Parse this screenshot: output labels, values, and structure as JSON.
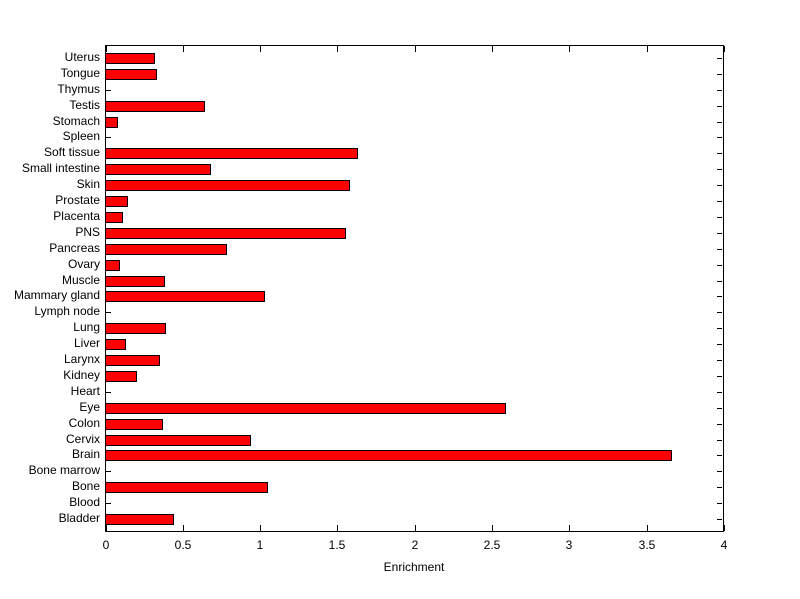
{
  "figure": {
    "background_color": "#ffffff",
    "text_color": "#000000"
  },
  "chart_data": {
    "type": "bar",
    "orientation": "horizontal",
    "title": "",
    "xlabel": "Enrichment",
    "ylabel": "",
    "xlim": [
      0,
      4
    ],
    "grid": false,
    "legend_position": "none",
    "bar_color": "#ff0000",
    "bar_edge_color": "#000000",
    "axis_color": "#000000",
    "categories": [
      "Uterus",
      "Tongue",
      "Thymus",
      "Testis",
      "Stomach",
      "Spleen",
      "Soft tissue",
      "Small intestine",
      "Skin",
      "Prostate",
      "Placenta",
      "PNS",
      "Pancreas",
      "Ovary",
      "Muscle",
      "Mammary gland",
      "Lymph node",
      "Lung",
      "Liver",
      "Larynx",
      "Kidney",
      "Heart",
      "Eye",
      "Colon",
      "Cervix",
      "Brain",
      "Bone marrow",
      "Bone",
      "Blood",
      "Bladder"
    ],
    "values": [
      0.32,
      0.33,
      0,
      0.64,
      0.08,
      0,
      1.63,
      0.68,
      1.58,
      0.14,
      0.11,
      1.55,
      0.78,
      0.09,
      0.38,
      1.03,
      0,
      0.39,
      0.13,
      0.35,
      0.2,
      0,
      2.59,
      0.37,
      0.94,
      3.66,
      0,
      1.05,
      0,
      0.44
    ],
    "xticks": [
      0,
      0.5,
      1,
      1.5,
      2,
      2.5,
      3,
      3.5,
      4
    ],
    "xtick_labels": [
      "0",
      "0.5",
      "1",
      "1.5",
      "2",
      "2.5",
      "3",
      "3.5",
      "4"
    ]
  }
}
